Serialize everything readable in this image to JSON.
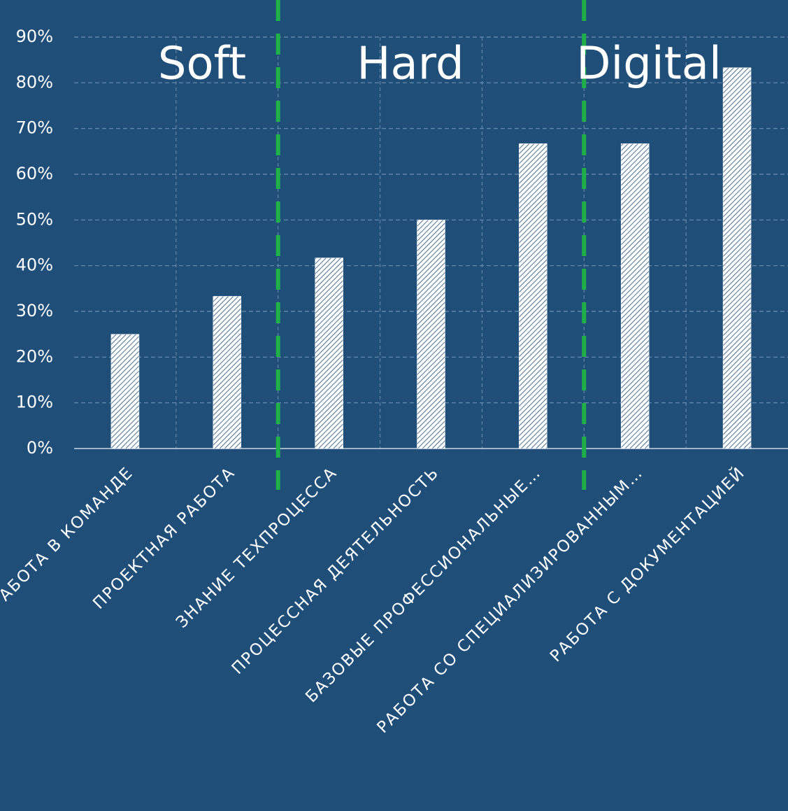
{
  "chart_data": {
    "type": "bar",
    "categories": [
      "РАБОТА В КОМАНДЕ",
      "ПРОЕКТНАЯ РАБОТА",
      "ЗНАНИЕ ТЕХПРОЦЕССА",
      "ПРОЦЕССНАЯ ДЕЯТЕЛЬНОСТЬ",
      "БАЗОВЫЕ ПРОФЕССИОНАЛЬНЫЕ…",
      "РАБОТА СО СПЕЦИАЛИЗИРОВАННЫМ…",
      "РАБОТА С ДОКУМЕНТАЦИЕЙ"
    ],
    "values": [
      25,
      33.3,
      41.7,
      50,
      66.7,
      66.7,
      83.3
    ],
    "color": "#ffffff",
    "ylim": [
      0,
      90
    ],
    "yticks": [
      {
        "value": 0,
        "label": "0%"
      },
      {
        "value": 10,
        "label": "10%"
      },
      {
        "value": 20,
        "label": "20%"
      },
      {
        "value": 30,
        "label": "30%"
      },
      {
        "value": 40,
        "label": "40%"
      },
      {
        "value": 50,
        "label": "50%"
      },
      {
        "value": 60,
        "label": "60%"
      },
      {
        "value": 70,
        "label": "70%"
      },
      {
        "value": 80,
        "label": "80%"
      },
      {
        "value": 90,
        "label": "90%"
      }
    ],
    "grid": true,
    "annotations": [
      "Soft",
      "Hard",
      "Digital"
    ]
  }
}
